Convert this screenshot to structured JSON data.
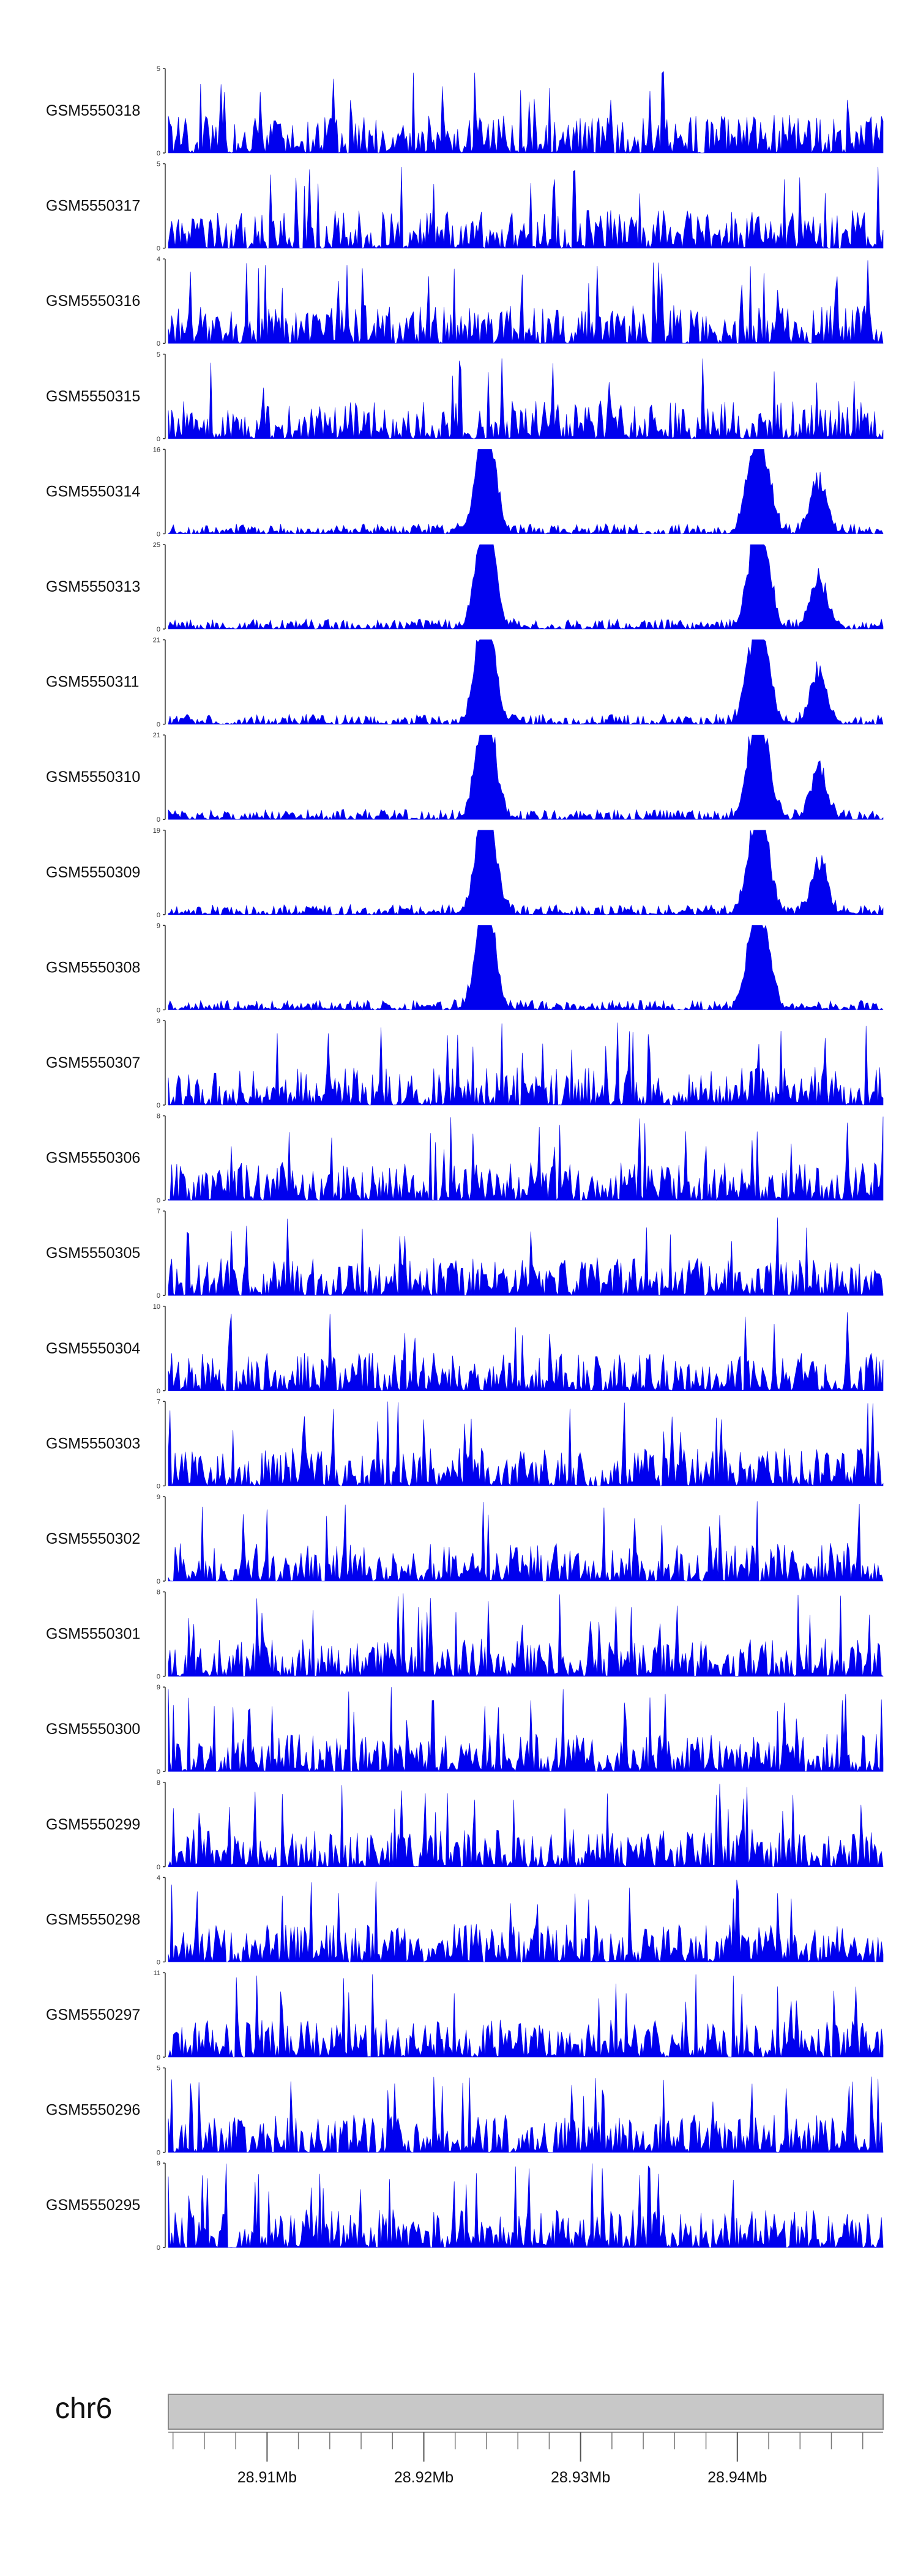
{
  "chart_data": {
    "type": "area",
    "chromosome": "chr6",
    "x_range_mb": [
      28.9037,
      28.9493
    ],
    "area_color": "#0000ee",
    "tracks": [
      {
        "name": "GSM5550318",
        "ymax": 5,
        "ytick_labels": [
          "5",
          "0"
        ]
      },
      {
        "name": "GSM5550317",
        "ymax": 5,
        "ytick_labels": [
          "5",
          "0"
        ]
      },
      {
        "name": "GSM5550316",
        "ymax": 4,
        "ytick_labels": [
          "4",
          "0"
        ]
      },
      {
        "name": "GSM5550315",
        "ymax": 5,
        "ytick_labels": [
          "5",
          "0"
        ]
      },
      {
        "name": "GSM5550314",
        "ymax": 16,
        "ytick_labels": [
          "16",
          "0"
        ]
      },
      {
        "name": "GSM5550313",
        "ymax": 25,
        "ytick_labels": [
          "25",
          "0"
        ]
      },
      {
        "name": "GSM5550311",
        "ymax": 21,
        "ytick_labels": [
          "21",
          "0"
        ]
      },
      {
        "name": "GSM5550310",
        "ymax": 21,
        "ytick_labels": [
          "21",
          "0"
        ]
      },
      {
        "name": "GSM5550309",
        "ymax": 19,
        "ytick_labels": [
          "19",
          "0"
        ]
      },
      {
        "name": "GSM5550308",
        "ymax": 9,
        "ytick_labels": [
          "9",
          "0"
        ]
      },
      {
        "name": "GSM5550307",
        "ymax": 9,
        "ytick_labels": [
          "9",
          "0"
        ]
      },
      {
        "name": "GSM5550306",
        "ymax": 8,
        "ytick_labels": [
          "8",
          "0"
        ]
      },
      {
        "name": "GSM5550305",
        "ymax": 7,
        "ytick_labels": [
          "7",
          "0"
        ]
      },
      {
        "name": "GSM5550304",
        "ymax": 10,
        "ytick_labels": [
          "10",
          "0"
        ]
      },
      {
        "name": "GSM5550303",
        "ymax": 7,
        "ytick_labels": [
          "7",
          "0"
        ]
      },
      {
        "name": "GSM5550302",
        "ymax": 9,
        "ytick_labels": [
          "9",
          "0"
        ]
      },
      {
        "name": "GSM5550301",
        "ymax": 8,
        "ytick_labels": [
          "8",
          "0"
        ]
      },
      {
        "name": "GSM5550300",
        "ymax": 9,
        "ytick_labels": [
          "9",
          "0"
        ]
      },
      {
        "name": "GSM5550299",
        "ymax": 8,
        "ytick_labels": [
          "8",
          "0"
        ]
      },
      {
        "name": "GSM5550298",
        "ymax": 4,
        "ytick_labels": [
          "4",
          "0"
        ]
      },
      {
        "name": "GSM5550297",
        "ymax": 11,
        "ytick_labels": [
          "11",
          "0"
        ]
      },
      {
        "name": "GSM5550296",
        "ymax": 5,
        "ytick_labels": [
          "5",
          "0"
        ]
      },
      {
        "name": "GSM5550295",
        "ymax": 9,
        "ytick_labels": [
          "9",
          "0"
        ]
      }
    ],
    "peaks_mb": [
      {
        "tracks": [
          "GSM5550314",
          "GSM5550313",
          "GSM5550311",
          "GSM5550310",
          "GSM5550309",
          "GSM5550308"
        ],
        "centers": [
          28.9237,
          28.9242
        ],
        "relative_height": 0.95
      },
      {
        "tracks": [
          "GSM5550314",
          "GSM5550313",
          "GSM5550311",
          "GSM5550310",
          "GSM5550309",
          "GSM5550308"
        ],
        "centers": [
          28.941,
          28.9417
        ],
        "relative_height": 0.9
      },
      {
        "tracks": [
          "GSM5550314",
          "GSM5550313",
          "GSM5550311",
          "GSM5550310",
          "GSM5550309"
        ],
        "centers": [
          28.9452
        ],
        "relative_height": 0.7
      }
    ],
    "axis_ticks_mb": [
      28.91,
      28.92,
      28.93,
      28.94
    ],
    "axis_tick_labels": [
      "28.91Mb",
      "28.92Mb",
      "28.93Mb",
      "28.94Mb"
    ],
    "minor_tick_step_mb": 0.002
  }
}
